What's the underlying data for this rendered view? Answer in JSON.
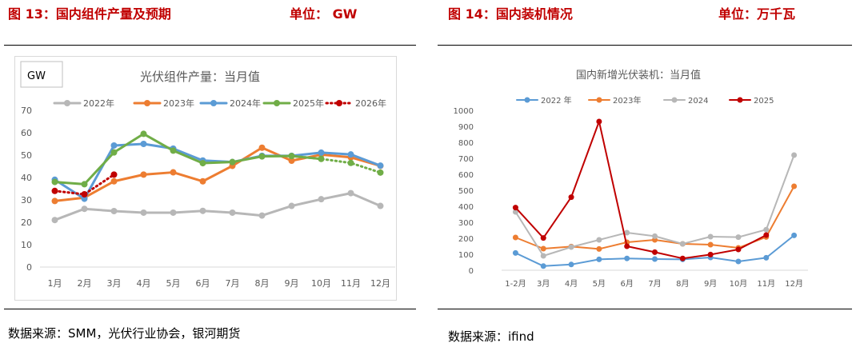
{
  "left": {
    "fig_title": "图 13：国内组件产量及预期",
    "unit_label": "单位：  GW",
    "source": "数据来源：SMM，光伏行业协会，银河期货"
  },
  "right": {
    "fig_title": "图 14：国内装机情况",
    "unit_label": "单位：万千瓦",
    "source": "数据来源：ifind"
  },
  "chart_data": [
    {
      "type": "line",
      "title": "光伏组件产量：当月值",
      "unit_box": "GW",
      "categories": [
        "1月",
        "2月",
        "3月",
        "4月",
        "5月",
        "6月",
        "7月",
        "8月",
        "9月",
        "10月",
        "11月",
        "12月"
      ],
      "ylim": [
        0,
        70
      ],
      "yticks": [
        0,
        10,
        20,
        30,
        40,
        50,
        60,
        70
      ],
      "grid": false,
      "legend_position": "top",
      "colors": {
        "2022年": "#b7b7b7",
        "2023年": "#ed7d31",
        "2024年": "#5b9bd5",
        "2025年": "#70ad47",
        "2026年": "#c00000"
      },
      "series": [
        {
          "name": "2022年",
          "values": [
            21,
            26,
            25,
            24.3,
            24.3,
            25.1,
            24.3,
            23,
            27.3,
            30.3,
            33,
            27.3
          ]
        },
        {
          "name": "2023年",
          "values": [
            29.5,
            31,
            38.3,
            41.3,
            42.3,
            38.3,
            45.2,
            53.3,
            47.5,
            50.2,
            49,
            45.2
          ]
        },
        {
          "name": "2024年",
          "values": [
            39,
            30.5,
            54.3,
            55,
            52.9,
            47.6,
            46.9,
            49.7,
            49.7,
            51.1,
            50.3,
            45.3
          ]
        },
        {
          "name": "2025年",
          "values": [
            38,
            37,
            51.2,
            59.5,
            52,
            46.4,
            46.9,
            49.4,
            49.6,
            48.3,
            46.5,
            42.2
          ]
        },
        {
          "name": "2026年",
          "values": [
            34,
            32.5,
            41.3,
            null,
            null,
            null,
            null,
            null,
            null,
            null,
            null,
            null
          ]
        }
      ],
      "dashed_segments": [
        {
          "series": "2025年",
          "from_index": 9
        }
      ]
    },
    {
      "type": "line",
      "title": "国内新增光伏装机：当月值",
      "categories": [
        "1-2月",
        "3月",
        "4月",
        "5月",
        "6月",
        "7月",
        "8月",
        "9月",
        "10月",
        "11月",
        "12月"
      ],
      "ylim": [
        0,
        1000
      ],
      "yticks": [
        0,
        100,
        200,
        300,
        400,
        500,
        600,
        700,
        800,
        900,
        1000
      ],
      "grid": false,
      "legend_position": "top",
      "colors": {
        "2022 年": "#5b9bd5",
        "2023年": "#ed7d31",
        "2024": "#b7b7b7",
        "2025": "#c00000"
      },
      "series": [
        {
          "name": "2022 年",
          "values": [
            108,
            26,
            36,
            68,
            74,
            70,
            68,
            80,
            55,
            78,
            218
          ]
        },
        {
          "name": "2023年",
          "values": [
            205,
            135,
            148,
            133,
            175,
            190,
            165,
            160,
            140,
            208,
            525
          ]
        },
        {
          "name": "2024",
          "values": [
            365,
            90,
            145,
            190,
            235,
            213,
            165,
            210,
            207,
            254,
            720
          ]
        },
        {
          "name": "2025",
          "values": [
            392,
            202,
            457,
            930,
            150,
            113,
            74,
            98,
            130,
            220,
            null
          ]
        }
      ]
    }
  ]
}
